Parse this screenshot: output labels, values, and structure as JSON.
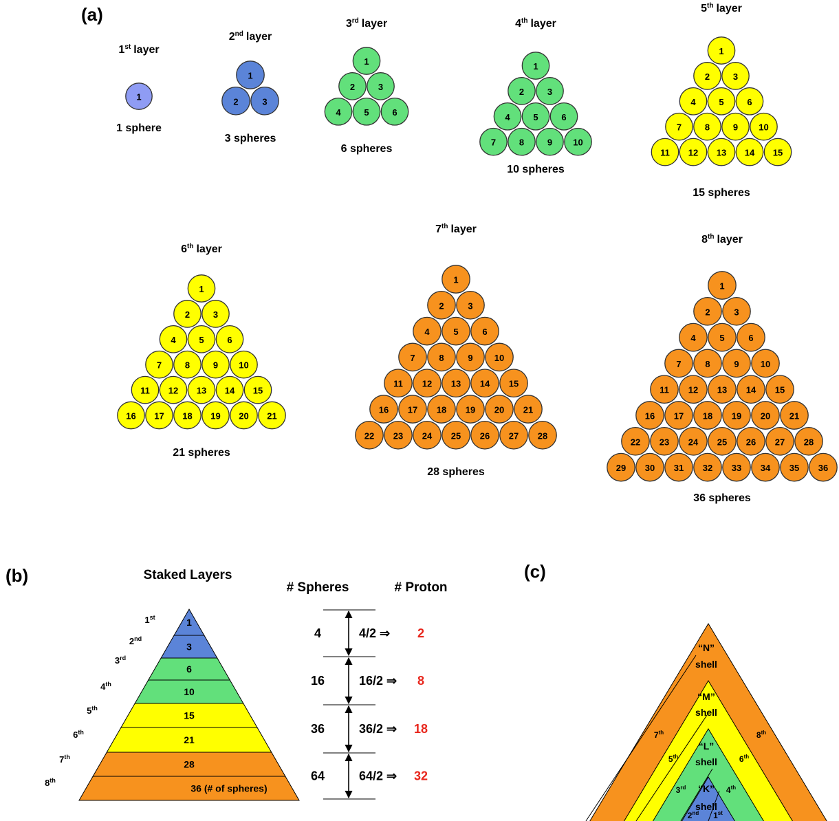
{
  "panel_a": {
    "label": "(a)",
    "layers": [
      {
        "ordinal": "1",
        "suffix": "st",
        "caption": "layer",
        "spheres": "1 sphere",
        "rows": 1,
        "color": "#8f9cf4"
      },
      {
        "ordinal": "2",
        "suffix": "nd",
        "caption": "layer",
        "spheres": "3 spheres",
        "rows": 2,
        "color": "#5b84d8"
      },
      {
        "ordinal": "3",
        "suffix": "rd",
        "caption": "layer",
        "spheres": "6 spheres",
        "rows": 3,
        "color": "#62e07b"
      },
      {
        "ordinal": "4",
        "suffix": "th",
        "caption": "layer",
        "spheres": "10 spheres",
        "rows": 4,
        "color": "#62e07b"
      },
      {
        "ordinal": "5",
        "suffix": "th",
        "caption": "layer",
        "spheres": "15 spheres",
        "rows": 5,
        "color": "#ffff00"
      },
      {
        "ordinal": "6",
        "suffix": "th",
        "caption": "layer",
        "spheres": "21 spheres",
        "rows": 6,
        "color": "#ffff00"
      },
      {
        "ordinal": "7",
        "suffix": "th",
        "caption": "layer",
        "spheres": "28 spheres",
        "rows": 7,
        "color": "#f7921e"
      },
      {
        "ordinal": "8",
        "suffix": "th",
        "caption": "layer",
        "spheres": "36 spheres",
        "rows": 8,
        "color": "#f7921e"
      }
    ]
  },
  "panel_b": {
    "label": "(b)",
    "title": "Staked Layers",
    "col_spheres": "# Spheres",
    "col_proton": "# Proton",
    "layers": [
      {
        "ordinal": "1",
        "suffix": "st",
        "value": "1",
        "color": "#5b84d8"
      },
      {
        "ordinal": "2",
        "suffix": "nd",
        "value": "3",
        "color": "#5b84d8"
      },
      {
        "ordinal": "3",
        "suffix": "rd",
        "value": "6",
        "color": "#62e07b"
      },
      {
        "ordinal": "4",
        "suffix": "th",
        "value": "10",
        "color": "#62e07b"
      },
      {
        "ordinal": "5",
        "suffix": "th",
        "value": "15",
        "color": "#ffff00"
      },
      {
        "ordinal": "6",
        "suffix": "th",
        "value": "21",
        "color": "#ffff00"
      },
      {
        "ordinal": "7",
        "suffix": "th",
        "value": "28",
        "color": "#f7921e"
      },
      {
        "ordinal": "8",
        "suffix": "th",
        "value": "36 (# of spheres)",
        "color": "#f7921e"
      }
    ],
    "groups": [
      {
        "spheres": "4",
        "fraction": "4/2",
        "arrow": "⇒",
        "protons": "2"
      },
      {
        "spheres": "16",
        "fraction": "16/2",
        "arrow": "⇒",
        "protons": "8"
      },
      {
        "spheres": "36",
        "fraction": "36/2",
        "arrow": "⇒",
        "protons": "18"
      },
      {
        "spheres": "64",
        "fraction": "64/2",
        "arrow": "⇒",
        "protons": "32"
      }
    ],
    "proton_color": "#e8261c"
  },
  "panel_c": {
    "label": "(c)",
    "shells": [
      {
        "name": "“N”",
        "word": "shell",
        "left": {
          "o": "7",
          "s": "th"
        },
        "right": {
          "o": "8",
          "s": "th"
        },
        "color": "#f7921e"
      },
      {
        "name": "“M”",
        "word": "shell",
        "left": {
          "o": "5",
          "s": "th"
        },
        "right": {
          "o": "6",
          "s": "th"
        },
        "color": "#ffff00"
      },
      {
        "name": "“L”",
        "word": "shell",
        "left": {
          "o": "3",
          "s": "rd"
        },
        "right": {
          "o": "4",
          "s": "th"
        },
        "color": "#62e07b"
      },
      {
        "name": "“K”",
        "word": "shell",
        "left": {
          "o": "2",
          "s": "nd"
        },
        "right": {
          "o": "1",
          "s": "st"
        },
        "color": "#5b84d8"
      }
    ]
  }
}
